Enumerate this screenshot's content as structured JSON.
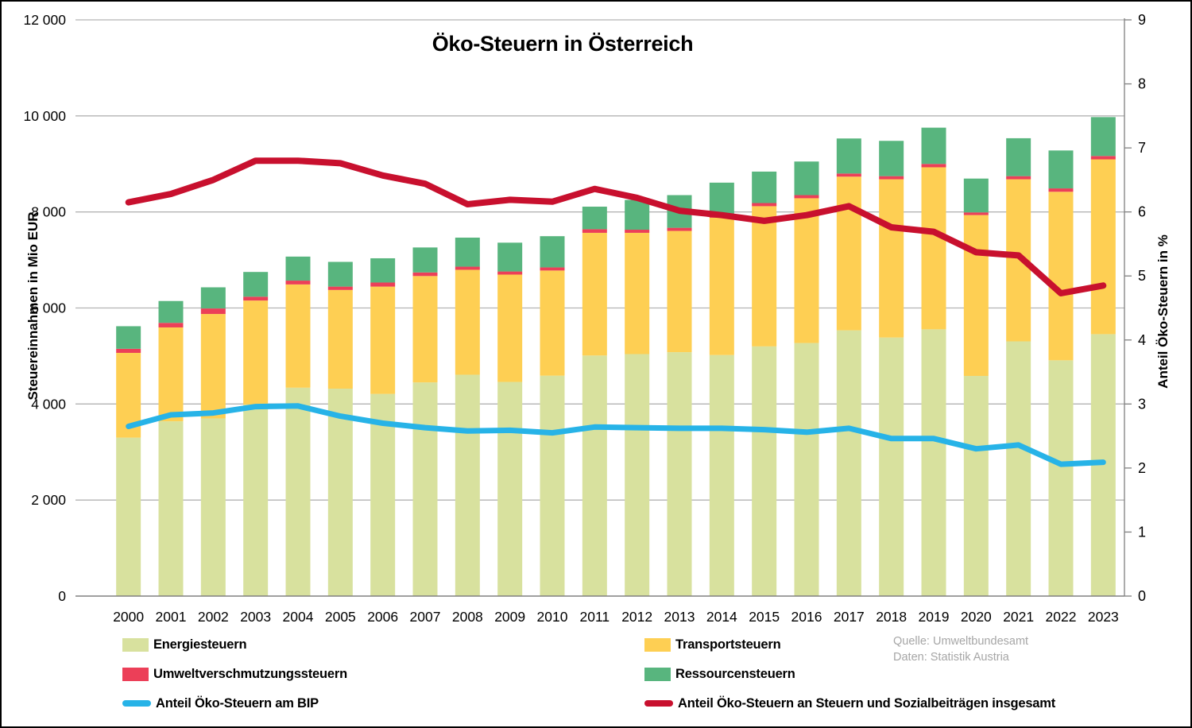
{
  "title": "Öko-Steuern in Österreich",
  "y_axis_left": {
    "title": "Steuereinnahmen in Mio EUR",
    "ticks": [
      {
        "label": "12 000",
        "value": 12000
      },
      {
        "label": "10 000",
        "value": 10000
      },
      {
        "label": "8 000",
        "value": 8000
      },
      {
        "label": "6 000",
        "value": 6000
      },
      {
        "label": "4 000",
        "value": 4000
      },
      {
        "label": "2 000",
        "value": 2000
      },
      {
        "label": "0",
        "value": 0
      }
    ]
  },
  "y_axis_right": {
    "title": "Anteil Öko-Steuern in %",
    "tick_values": [
      0,
      1,
      2,
      3,
      4,
      5,
      6,
      7,
      8,
      9
    ]
  },
  "source": {
    "line1": "Quelle: Umweltbundesamt",
    "line2": "Daten: Statistik Austria"
  },
  "colors": {
    "gridline": "#b3b3b3",
    "baseline": "#808080",
    "right_axis": "#808080",
    "source_text": "#a6a6a6",
    "text": "#000000"
  },
  "legend": {
    "items": [
      {
        "label": "Energiesteuern",
        "swatch": "rect",
        "series": 0
      },
      {
        "label": "Transportsteuern",
        "swatch": "rect",
        "series": 1
      },
      {
        "label": "Umweltverschmutzungssteuern",
        "swatch": "rect",
        "series": 2
      },
      {
        "label": "Ressourcensteuern",
        "swatch": "rect",
        "series": 3
      },
      {
        "label": "Anteil Öko-Steuern am BIP",
        "swatch": "line",
        "series": 4
      },
      {
        "label": "Anteil Öko-Steuern an Steuern und Sozialbeiträgen insgesamt",
        "swatch": "line",
        "series": 5
      }
    ]
  },
  "chart_data": {
    "type": "bar",
    "subtype": "stacked-bars-with-overlay-lines",
    "title": "Öko-Steuern in Österreich",
    "xlabel": "",
    "ylabel_left": "Steuereinnahmen in Mio EUR",
    "ylabel_right": "Anteil Öko-Steuern in %",
    "ylim_left": [
      0,
      12000
    ],
    "ylim_right": [
      0,
      9
    ],
    "grid": "horizontal",
    "legend_position": "bottom",
    "categories": [
      "2000",
      "2001",
      "2002",
      "2003",
      "2004",
      "2005",
      "2006",
      "2007",
      "2008",
      "2009",
      "2010",
      "2011",
      "2012",
      "2013",
      "2014",
      "2015",
      "2016",
      "2017",
      "2018",
      "2019",
      "2020",
      "2021",
      "2022",
      "2023"
    ],
    "series": [
      {
        "name": "Energiesteuern",
        "type": "bar",
        "axis": "left",
        "color": "#d8e19e",
        "values": [
          3300,
          3640,
          3700,
          3990,
          4340,
          4320,
          4210,
          4450,
          4610,
          4460,
          4590,
          5010,
          5040,
          5080,
          5020,
          5200,
          5270,
          5535,
          5385,
          5555,
          4585,
          5305,
          4910,
          5455
        ]
      },
      {
        "name": "Transportsteuern",
        "type": "bar",
        "axis": "left",
        "color": "#fecf53",
        "values": [
          1765,
          1955,
          2175,
          2165,
          2150,
          2055,
          2235,
          2215,
          2185,
          2235,
          2190,
          2555,
          2525,
          2525,
          2860,
          2920,
          3015,
          3200,
          3295,
          3375,
          3350,
          3375,
          3510,
          3640
        ]
      },
      {
        "name": "Umweltverschmutzungssteuern",
        "type": "bar",
        "axis": "left",
        "color": "#ec3f58",
        "values": [
          85,
          95,
          115,
          80,
          80,
          70,
          85,
          75,
          65,
          65,
          65,
          75,
          65,
          65,
          70,
          65,
          65,
          65,
          65,
          70,
          55,
          65,
          70,
          70
        ]
      },
      {
        "name": "Ressourcensteuern",
        "type": "bar",
        "axis": "left",
        "color": "#58b57e",
        "values": [
          470,
          455,
          440,
          515,
          500,
          515,
          505,
          520,
          605,
          600,
          650,
          470,
          620,
          680,
          660,
          655,
          700,
          730,
          735,
          755,
          705,
          790,
          790,
          810
        ]
      },
      {
        "name": "Anteil Öko-Steuern am BIP",
        "type": "line",
        "axis": "right",
        "color": "#27b3e7",
        "values": [
          2.65,
          2.83,
          2.86,
          2.96,
          2.97,
          2.81,
          2.7,
          2.63,
          2.58,
          2.59,
          2.55,
          2.64,
          2.63,
          2.62,
          2.62,
          2.6,
          2.56,
          2.62,
          2.46,
          2.46,
          2.3,
          2.36,
          2.06,
          2.09
        ]
      },
      {
        "name": "Anteil Öko-Steuern an Steuern und Sozialbeiträgen insgesamt",
        "type": "line",
        "axis": "right",
        "color": "#c8102e",
        "values": [
          6.15,
          6.28,
          6.5,
          6.8,
          6.8,
          6.76,
          6.57,
          6.44,
          6.12,
          6.19,
          6.16,
          6.36,
          6.22,
          6.02,
          5.95,
          5.86,
          5.95,
          6.09,
          5.76,
          5.69,
          5.37,
          5.32,
          4.73,
          4.85
        ]
      }
    ]
  }
}
